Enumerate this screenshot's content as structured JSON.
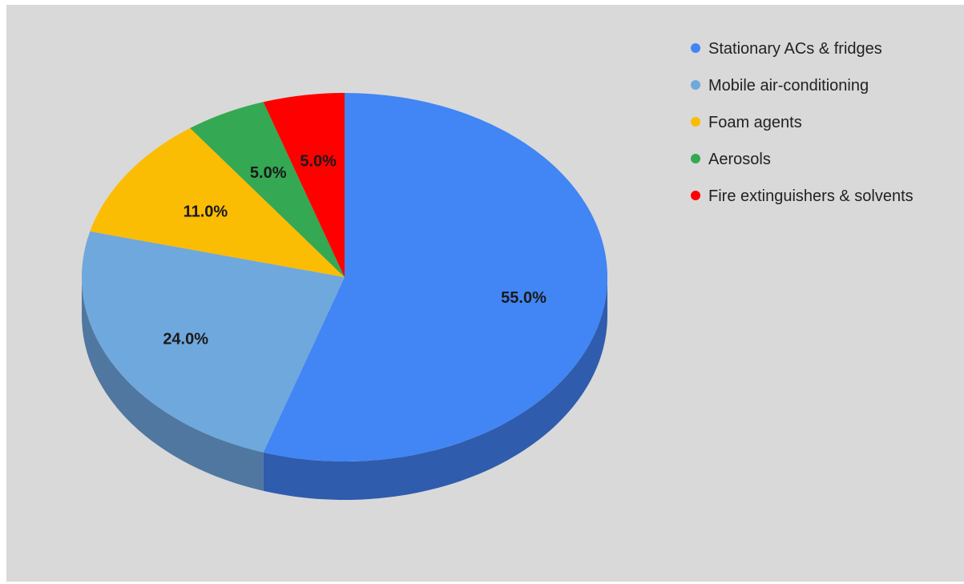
{
  "chart_data": {
    "type": "pie",
    "style": "3d",
    "title": "",
    "legend_position": "right",
    "slices": [
      {
        "label": "Stationary ACs & fridges",
        "value": 55.0,
        "display": "55.0%",
        "color": "#4285f4",
        "side_color": "#2f5cad"
      },
      {
        "label": "Mobile air-conditioning",
        "value": 24.0,
        "display": "24.0%",
        "color": "#6fa8dc",
        "side_color": "#4f77a0"
      },
      {
        "label": "Foam agents",
        "value": 11.0,
        "display": "11.0%",
        "color": "#fbbc04",
        "side_color": "#b8890a"
      },
      {
        "label": "Aerosols",
        "value": 5.0,
        "display": "5.0%",
        "color": "#34a853",
        "side_color": "#24773b"
      },
      {
        "label": "Fire extinguishers & solvents",
        "value": 5.0,
        "display": "5.0%",
        "color": "#ff0000",
        "side_color": "#b30000"
      }
    ]
  }
}
